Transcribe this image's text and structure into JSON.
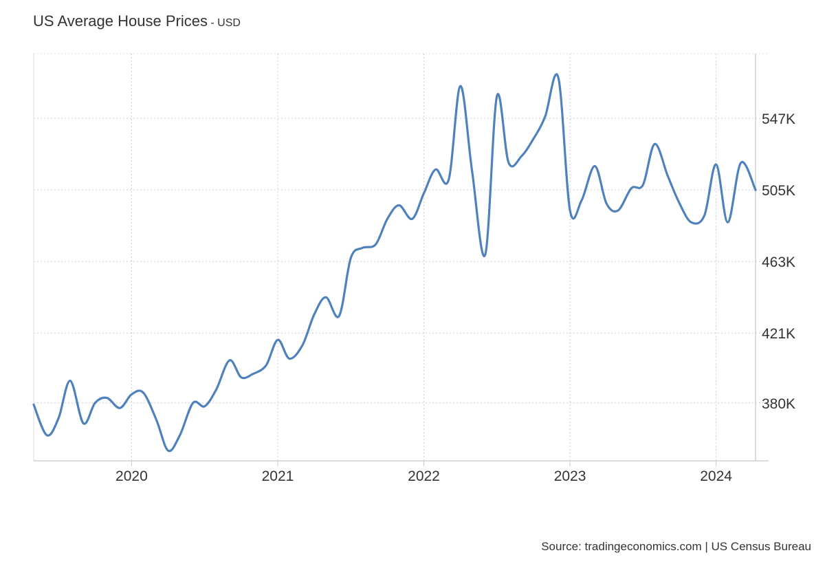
{
  "header": {
    "title": "US Average House Prices",
    "subtitle": "- USD"
  },
  "footer": {
    "source": "Source: tradingeconomics.com | US Census Bureau"
  },
  "chart_data": {
    "type": "line",
    "title": "US Average House Prices",
    "subtitle": "- USD",
    "xlabel": "",
    "ylabel": "",
    "y_tick_values": [
      380,
      421,
      463,
      505,
      547
    ],
    "y_tick_labels": [
      "380K",
      "421K",
      "463K",
      "505K",
      "547K"
    ],
    "x_tick_values": [
      2020,
      2021,
      2022,
      2023,
      2024
    ],
    "x_tick_labels": [
      "2020",
      "2021",
      "2022",
      "2023",
      "2024"
    ],
    "xlim": [
      2019.33,
      2024.27
    ],
    "ylim": [
      346,
      585
    ],
    "grid": true,
    "y_axis_side": "right",
    "line_color": "#4f81bd",
    "series": [
      {
        "name": "",
        "unit": "thousand USD",
        "x": [
          2019.33,
          2019.42,
          2019.5,
          2019.58,
          2019.67,
          2019.75,
          2019.83,
          2019.92,
          2020.0,
          2020.08,
          2020.17,
          2020.25,
          2020.33,
          2020.42,
          2020.5,
          2020.58,
          2020.67,
          2020.75,
          2020.83,
          2020.92,
          2021.0,
          2021.08,
          2021.17,
          2021.25,
          2021.33,
          2021.42,
          2021.5,
          2021.58,
          2021.67,
          2021.75,
          2021.83,
          2021.92,
          2022.0,
          2022.08,
          2022.17,
          2022.25,
          2022.33,
          2022.42,
          2022.5,
          2022.58,
          2022.67,
          2022.75,
          2022.83,
          2022.92,
          2023.0,
          2023.08,
          2023.17,
          2023.25,
          2023.33,
          2023.42,
          2023.5,
          2023.58,
          2023.67,
          2023.75,
          2023.83,
          2023.92,
          2024.0,
          2024.08,
          2024.17,
          2024.27
        ],
        "values": [
          379,
          361,
          371,
          393,
          368,
          380,
          383,
          377,
          385,
          386,
          370,
          352,
          361,
          380,
          378,
          388,
          405,
          395,
          397,
          402,
          417,
          406,
          414,
          432,
          442,
          431,
          465,
          471,
          473,
          488,
          496,
          488,
          503,
          517,
          511,
          566,
          516,
          467,
          560,
          521,
          525,
          535,
          548,
          571,
          493,
          499,
          519,
          497,
          493,
          506,
          508,
          532,
          513,
          497,
          486,
          490,
          520,
          486,
          521,
          505
        ]
      }
    ]
  }
}
